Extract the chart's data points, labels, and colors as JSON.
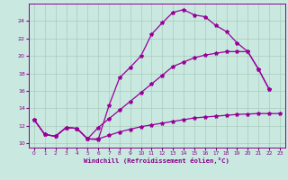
{
  "xlabel": "Windchill (Refroidissement éolien,°C)",
  "bg_color": "#c8e8e0",
  "line_color": "#990099",
  "xlim": [
    -0.5,
    23.5
  ],
  "ylim": [
    9.5,
    26.0
  ],
  "yticks": [
    10,
    12,
    14,
    16,
    18,
    20,
    22,
    24
  ],
  "xticks": [
    0,
    1,
    2,
    3,
    4,
    5,
    6,
    7,
    8,
    9,
    10,
    11,
    12,
    13,
    14,
    15,
    16,
    17,
    18,
    19,
    20,
    21,
    22,
    23
  ],
  "line1_x": [
    0,
    1,
    2,
    3,
    4,
    5,
    6,
    7,
    8,
    9,
    10,
    11,
    12,
    13,
    14,
    15,
    16,
    17,
    18,
    19,
    20,
    21,
    22
  ],
  "line1_y": [
    12.7,
    11.0,
    10.8,
    11.8,
    11.7,
    10.5,
    10.4,
    14.3,
    17.5,
    18.7,
    20.0,
    22.5,
    23.8,
    25.0,
    25.3,
    24.7,
    24.5,
    23.5,
    22.8,
    21.5,
    20.5,
    18.5,
    16.2
  ],
  "line2_x": [
    0,
    1,
    2,
    3,
    4,
    5,
    6,
    7,
    8,
    9,
    10,
    11,
    12,
    13,
    14,
    15,
    16,
    17,
    18,
    19,
    20,
    21,
    22
  ],
  "line2_y": [
    12.7,
    11.0,
    10.8,
    11.8,
    11.7,
    10.5,
    11.8,
    12.8,
    13.8,
    14.8,
    15.8,
    16.8,
    17.8,
    18.8,
    19.3,
    19.8,
    20.1,
    20.3,
    20.5,
    20.5,
    20.5,
    18.5,
    16.2
  ],
  "line3_x": [
    0,
    1,
    2,
    3,
    4,
    5,
    6,
    7,
    8,
    9,
    10,
    11,
    12,
    13,
    14,
    15,
    16,
    17,
    18,
    19,
    20,
    21,
    22,
    23
  ],
  "line3_y": [
    12.7,
    11.0,
    10.8,
    11.8,
    11.7,
    10.5,
    10.5,
    10.9,
    11.3,
    11.6,
    11.9,
    12.1,
    12.3,
    12.5,
    12.7,
    12.9,
    13.0,
    13.1,
    13.2,
    13.3,
    13.35,
    13.4,
    13.4,
    13.4
  ]
}
